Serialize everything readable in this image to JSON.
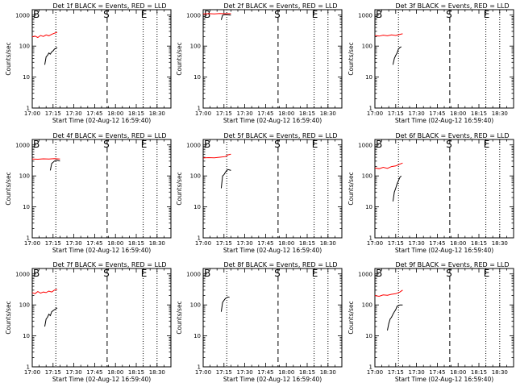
{
  "common": {
    "xlabel": "Start Time (02-Aug-12 16:59:40)",
    "ylabel": "Counts/sec",
    "x_ticks": [
      "17:00",
      "17:15",
      "17:30",
      "17:45",
      "18:00",
      "18:15",
      "18:30"
    ],
    "y_ticks": [
      "1",
      "10",
      "100",
      "1000"
    ],
    "markers": {
      "B": "B",
      "S": "S",
      "E": "E"
    },
    "colors": {
      "events": "#000000",
      "lld": "#ff0000"
    }
  },
  "chart_data": [
    {
      "type": "line",
      "title": "Det 1f BLACK = Events, RED = LLD",
      "x_range_minutes": [
        0,
        100
      ],
      "ylim": [
        1,
        1500
      ],
      "y_scale": "log",
      "vlines_minutes": {
        "dotted": [
          17,
          80,
          90
        ],
        "dashed": [
          54
        ]
      },
      "series": [
        {
          "name": "Events",
          "color": "#000000",
          "x": [
            9,
            10,
            11,
            12,
            13,
            14,
            15,
            16,
            17,
            18
          ],
          "y": [
            25,
            45,
            50,
            60,
            55,
            65,
            70,
            80,
            85,
            90
          ]
        },
        {
          "name": "LLD",
          "color": "#ff0000",
          "x": [
            0,
            2,
            4,
            6,
            8,
            10,
            12,
            14,
            16,
            18
          ],
          "y": [
            200,
            210,
            190,
            220,
            205,
            230,
            215,
            240,
            260,
            280
          ]
        }
      ]
    },
    {
      "type": "line",
      "title": "Det 2f BLACK = Events, RED = LLD",
      "x_range_minutes": [
        0,
        100
      ],
      "ylim": [
        1,
        1500
      ],
      "y_scale": "log",
      "vlines_minutes": {
        "dotted": [
          17,
          80,
          90
        ],
        "dashed": [
          54
        ]
      },
      "series": [
        {
          "name": "Events",
          "color": "#000000",
          "x": [
            13,
            14,
            16,
            18,
            20
          ],
          "y": [
            700,
            1000,
            1050,
            1020,
            1000
          ]
        },
        {
          "name": "LLD",
          "color": "#ff0000",
          "x": [
            0,
            4,
            8,
            12,
            16,
            20
          ],
          "y": [
            1100,
            1120,
            1100,
            1130,
            1110,
            1120
          ]
        }
      ]
    },
    {
      "type": "line",
      "title": "Det 3f BLACK = Events, RED = LLD",
      "x_range_minutes": [
        0,
        100
      ],
      "ylim": [
        1,
        1500
      ],
      "y_scale": "log",
      "vlines_minutes": {
        "dotted": [
          17,
          80,
          90
        ],
        "dashed": [
          54
        ]
      },
      "series": [
        {
          "name": "Events",
          "color": "#000000",
          "x": [
            13,
            14,
            15,
            16,
            17,
            18,
            19
          ],
          "y": [
            25,
            40,
            50,
            60,
            80,
            90,
            95
          ]
        },
        {
          "name": "LLD",
          "color": "#ff0000",
          "x": [
            0,
            3,
            6,
            9,
            12,
            15,
            18,
            20
          ],
          "y": [
            220,
            210,
            225,
            215,
            230,
            220,
            240,
            250
          ]
        }
      ]
    },
    {
      "type": "line",
      "title": "Det 4f BLACK = Events, RED = LLD",
      "x_range_minutes": [
        0,
        100
      ],
      "ylim": [
        1,
        1500
      ],
      "y_scale": "log",
      "vlines_minutes": {
        "dotted": [
          17,
          80,
          90
        ],
        "dashed": [
          54
        ]
      },
      "series": [
        {
          "name": "Events",
          "color": "#000000",
          "x": [
            13,
            14,
            16,
            18,
            20
          ],
          "y": [
            150,
            250,
            300,
            320,
            300
          ]
        },
        {
          "name": "LLD",
          "color": "#ff0000",
          "x": [
            0,
            4,
            8,
            12,
            16,
            20
          ],
          "y": [
            350,
            345,
            355,
            350,
            360,
            350
          ]
        }
      ]
    },
    {
      "type": "line",
      "title": "Det 5f BLACK = Events, RED = LLD",
      "x_range_minutes": [
        0,
        100
      ],
      "ylim": [
        1,
        1500
      ],
      "y_scale": "log",
      "vlines_minutes": {
        "dotted": [
          17,
          80,
          90
        ],
        "dashed": [
          54
        ]
      },
      "series": [
        {
          "name": "Events",
          "color": "#000000",
          "x": [
            13,
            14,
            15,
            16,
            17,
            18,
            20
          ],
          "y": [
            40,
            100,
            110,
            130,
            150,
            160,
            150
          ]
        },
        {
          "name": "LLD",
          "color": "#ff0000",
          "x": [
            0,
            4,
            8,
            12,
            16,
            18,
            20
          ],
          "y": [
            380,
            390,
            385,
            400,
            420,
            480,
            500
          ]
        }
      ]
    },
    {
      "type": "line",
      "title": "Det 6f BLACK = Events, RED = LLD",
      "x_range_minutes": [
        0,
        100
      ],
      "ylim": [
        1,
        1500
      ],
      "y_scale": "log",
      "vlines_minutes": {
        "dotted": [
          17,
          80,
          90
        ],
        "dashed": [
          54
        ]
      },
      "series": [
        {
          "name": "Events",
          "color": "#000000",
          "x": [
            13,
            14,
            15,
            16,
            17,
            18,
            19
          ],
          "y": [
            15,
            30,
            40,
            55,
            70,
            90,
            100
          ]
        },
        {
          "name": "LLD",
          "color": "#ff0000",
          "x": [
            0,
            3,
            6,
            9,
            12,
            15,
            18,
            20
          ],
          "y": [
            180,
            170,
            190,
            175,
            200,
            210,
            240,
            260
          ]
        }
      ]
    },
    {
      "type": "line",
      "title": "Det 7f BLACK = Events, RED = LLD",
      "x_range_minutes": [
        0,
        100
      ],
      "ylim": [
        1,
        1500
      ],
      "y_scale": "log",
      "vlines_minutes": {
        "dotted": [
          17,
          80,
          90
        ],
        "dashed": [
          54
        ]
      },
      "series": [
        {
          "name": "Events",
          "color": "#000000",
          "x": [
            9,
            10,
            11,
            12,
            13,
            14,
            15,
            16,
            17,
            18
          ],
          "y": [
            20,
            35,
            40,
            50,
            45,
            60,
            65,
            70,
            75,
            80
          ]
        },
        {
          "name": "LLD",
          "color": "#ff0000",
          "x": [
            0,
            2,
            4,
            6,
            8,
            10,
            12,
            14,
            16,
            18
          ],
          "y": [
            250,
            230,
            270,
            240,
            260,
            250,
            280,
            260,
            300,
            320
          ]
        }
      ]
    },
    {
      "type": "line",
      "title": "Det 8f BLACK = Events, RED = LLD",
      "x_range_minutes": [
        0,
        100
      ],
      "ylim": [
        1,
        1500
      ],
      "y_scale": "log",
      "vlines_minutes": {
        "dotted": [
          17,
          80,
          90
        ],
        "dashed": [
          54
        ]
      },
      "series": [
        {
          "name": "Events",
          "color": "#000000",
          "x": [
            13,
            14,
            15,
            16,
            17,
            18,
            19
          ],
          "y": [
            60,
            120,
            140,
            160,
            170,
            180,
            175
          ]
        },
        {
          "name": "LLD",
          "color": "#ff0000",
          "x": [],
          "y": []
        }
      ]
    },
    {
      "type": "line",
      "title": "Det 9f BLACK = Events, RED = LLD",
      "x_range_minutes": [
        0,
        100
      ],
      "ylim": [
        1,
        1500
      ],
      "y_scale": "log",
      "vlines_minutes": {
        "dotted": [
          17,
          80,
          90
        ],
        "dashed": [
          54
        ]
      },
      "series": [
        {
          "name": "Events",
          "color": "#000000",
          "x": [
            9,
            10,
            11,
            12,
            13,
            14,
            15,
            16,
            18,
            20
          ],
          "y": [
            15,
            25,
            35,
            40,
            50,
            60,
            70,
            90,
            100,
            100
          ]
        },
        {
          "name": "LLD",
          "color": "#ff0000",
          "x": [
            0,
            3,
            6,
            9,
            12,
            15,
            18,
            20
          ],
          "y": [
            200,
            190,
            210,
            205,
            220,
            230,
            260,
            300
          ]
        }
      ]
    }
  ]
}
